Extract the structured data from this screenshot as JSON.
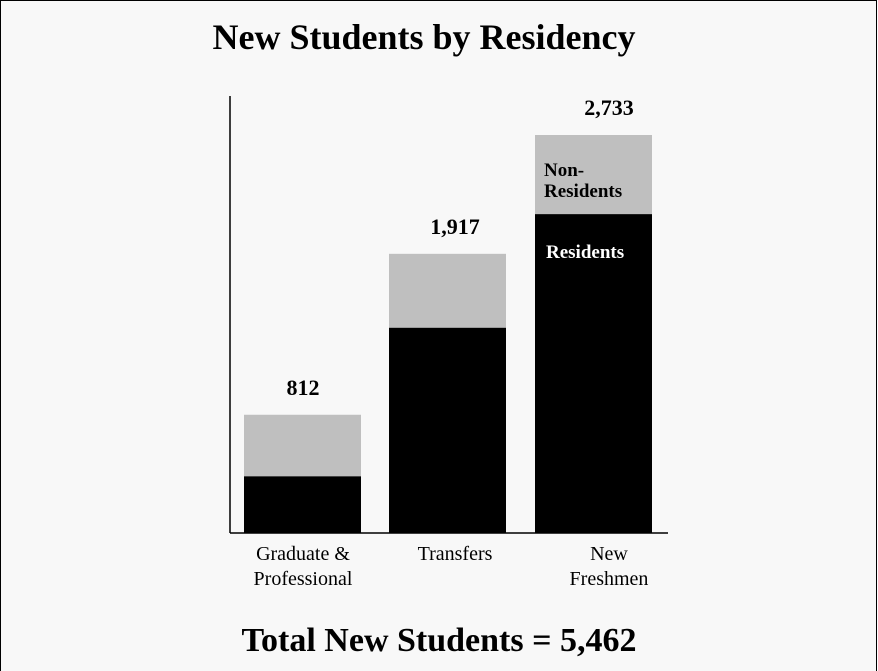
{
  "chart_data": {
    "type": "bar",
    "stacked": true,
    "title": "New Students by Residency",
    "categories": [
      [
        "Graduate &",
        "Professional"
      ],
      [
        "Transfers"
      ],
      [
        "New",
        "Freshmen"
      ]
    ],
    "totals": [
      "812",
      "1,917",
      "2,733"
    ],
    "series": [
      {
        "name": "Residents",
        "values": [
          390,
          1410,
          2190
        ],
        "color": "#000000"
      },
      {
        "name": "Non-Residents",
        "values": [
          422,
          507,
          543
        ],
        "color": "#bfbfbf"
      }
    ],
    "ylim": [
      0,
      3000
    ],
    "grid": false,
    "legend": "inline labels on New Freshmen bar"
  },
  "segment_labels": {
    "non_residents": [
      "Non-",
      "Residents"
    ],
    "residents": "Residents"
  },
  "footer": "Total New Students = 5,462",
  "colors": {
    "background": "#f8f8f8",
    "residents": "#000000",
    "non_residents": "#bfbfbf"
  }
}
